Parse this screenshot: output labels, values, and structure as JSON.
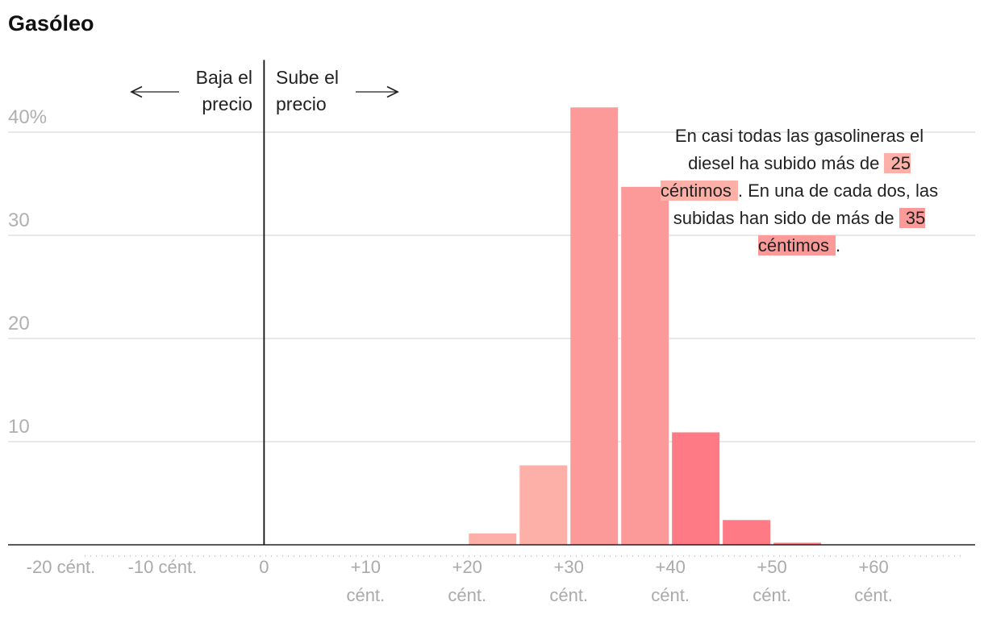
{
  "chart_data": {
    "type": "histogram",
    "title": "Gasóleo",
    "bins": [
      20,
      25,
      30,
      35,
      40,
      45,
      50,
      55
    ],
    "values": [
      1.1,
      7.7,
      42.4,
      34.7,
      10.9,
      2.4,
      0.2
    ],
    "colors": [
      "#fdb0a8",
      "#fdb0a8",
      "#fc9a9a",
      "#fc9a9a",
      "#fe7b85",
      "#fe7b85",
      "#fe7b85"
    ],
    "xlim": [
      -25.2,
      70
    ],
    "ylim": [
      0,
      47
    ],
    "xticks": [
      {
        "value": -20,
        "label": "-20 cént."
      },
      {
        "value": -10,
        "label": "-10 cént."
      },
      0,
      {
        "value": 10,
        "label": "+10 cént."
      },
      {
        "value": 20,
        "label": "+20 cént."
      },
      {
        "value": 30,
        "label": "+30 cént."
      },
      {
        "value": 40,
        "label": "+40 cént."
      },
      {
        "value": 50,
        "label": "+50 cént."
      },
      {
        "value": 60,
        "label": "+60 cént."
      }
    ],
    "yticks": [
      10,
      20,
      30,
      {
        "value": 40,
        "label": "40%"
      }
    ],
    "grid": true,
    "left_label": "Baja el precio",
    "right_label": "Sube el precio",
    "annotation": [
      "En casi todas las gasolineras el diesel ha subido más de",
      "25 céntimos",
      ". En una de cada dos, las subidas han sido de más de",
      "35 céntimos",
      "."
    ]
  }
}
